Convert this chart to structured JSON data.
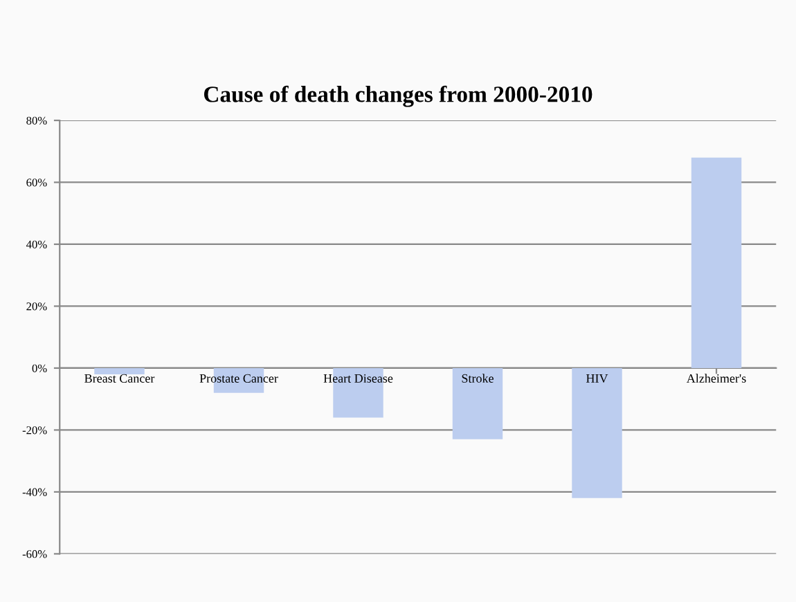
{
  "chart_data": {
    "type": "bar",
    "title": "Cause of death changes from 2000-2010",
    "categories": [
      "Breast Cancer",
      "Prostate Cancer",
      "Heart Disease",
      "Stroke",
      "HIV",
      "Alzheimer's"
    ],
    "values": [
      -2,
      -8,
      -16,
      -23,
      -42,
      68
    ],
    "color": "#bccdef",
    "ylim": [
      -60,
      80
    ],
    "yticks": [
      {
        "value": -60,
        "label": "-60%"
      },
      {
        "value": -40,
        "label": "-40%"
      },
      {
        "value": -20,
        "label": "-20%"
      },
      {
        "value": 0,
        "label": "0%"
      },
      {
        "value": 20,
        "label": "20%"
      },
      {
        "value": 40,
        "label": "40%"
      },
      {
        "value": 60,
        "label": "60%"
      },
      {
        "value": 80,
        "label": "80%"
      }
    ],
    "grid": "y",
    "legend": false
  }
}
